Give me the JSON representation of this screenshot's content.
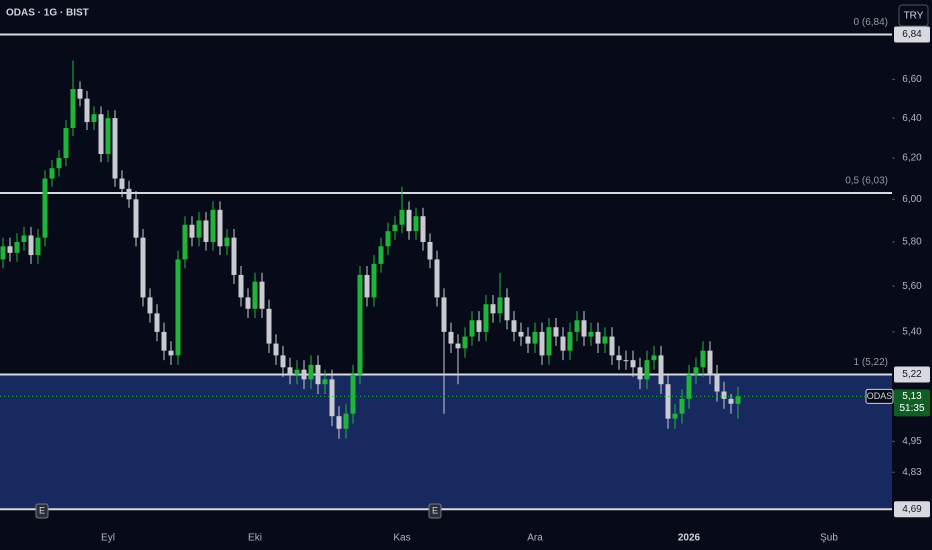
{
  "header": {
    "symbol_title": "ODAS · 1G · BIST",
    "currency": "TRY"
  },
  "chart_data": {
    "type": "candlestick",
    "categories": [
      null,
      null,
      null,
      null,
      null,
      null,
      null,
      null,
      null,
      null,
      null,
      null,
      null,
      null,
      null,
      "Eyl",
      null,
      null,
      null,
      null,
      null,
      null,
      null,
      null,
      null,
      null,
      null,
      null,
      null,
      null,
      null,
      null,
      null,
      null,
      null,
      null,
      "Eki",
      null,
      null,
      null,
      null,
      null,
      null,
      null,
      null,
      null,
      null,
      null,
      null,
      null,
      null,
      null,
      null,
      null,
      null,
      null,
      null,
      "Kas",
      null,
      null,
      null,
      null,
      null,
      null,
      null,
      null,
      null,
      null,
      null,
      null,
      null,
      null,
      null,
      null,
      null,
      null,
      "Ara",
      null,
      null,
      null,
      null,
      null,
      null,
      null,
      null,
      null,
      null,
      null,
      null,
      null,
      null,
      null,
      null,
      null,
      null,
      null,
      null,
      null,
      "2026",
      null,
      null,
      null,
      null,
      null,
      null,
      null,
      null,
      null,
      null,
      null,
      null,
      null,
      null,
      null,
      null,
      null,
      null,
      null,
      "Şub"
    ],
    "open": [
      5.72,
      5.78,
      5.75,
      5.8,
      5.83,
      5.74,
      5.82,
      6.1,
      6.15,
      6.2,
      6.35,
      6.55,
      6.5,
      6.38,
      6.42,
      6.22,
      6.4,
      6.1,
      6.05,
      6.0,
      5.82,
      5.55,
      5.48,
      5.4,
      5.32,
      5.3,
      5.72,
      5.88,
      5.82,
      5.9,
      5.8,
      5.95,
      5.78,
      5.82,
      5.65,
      5.55,
      5.5,
      5.62,
      5.5,
      5.35,
      5.3,
      5.25,
      5.22,
      5.24,
      5.2,
      5.26,
      5.18,
      5.2,
      5.05,
      5.0,
      5.06,
      5.22,
      5.65,
      5.55,
      5.7,
      5.78,
      5.85,
      5.88,
      5.95,
      5.85,
      5.92,
      5.8,
      5.72,
      5.55,
      5.4,
      5.35,
      5.33,
      5.38,
      5.45,
      5.4,
      5.52,
      5.48,
      5.55,
      5.45,
      5.4,
      5.38,
      5.35,
      5.4,
      5.3,
      5.42,
      5.38,
      5.32,
      5.4,
      5.45,
      5.38,
      5.4,
      5.35,
      5.38,
      5.3,
      5.28,
      5.28,
      5.25,
      5.2,
      5.28,
      5.3,
      5.18,
      5.04,
      5.06,
      5.12,
      5.22,
      5.25,
      5.32,
      5.22,
      5.15,
      5.12,
      5.1,
      null,
      null,
      null,
      null,
      null,
      null,
      null,
      null,
      null,
      null,
      null,
      null,
      null
    ],
    "high": [
      5.82,
      5.82,
      5.84,
      5.87,
      5.87,
      5.86,
      6.14,
      6.19,
      6.24,
      6.39,
      6.7,
      6.59,
      6.54,
      6.46,
      6.46,
      6.44,
      6.44,
      6.14,
      6.09,
      6.04,
      5.86,
      5.59,
      5.52,
      5.44,
      5.36,
      5.76,
      5.92,
      5.92,
      5.94,
      5.94,
      5.99,
      5.99,
      5.86,
      5.86,
      5.69,
      5.59,
      5.66,
      5.66,
      5.54,
      5.39,
      5.34,
      5.29,
      5.28,
      5.28,
      5.3,
      5.3,
      5.24,
      5.24,
      5.09,
      5.1,
      5.26,
      5.69,
      5.69,
      5.74,
      5.82,
      5.89,
      5.92,
      6.06,
      5.99,
      5.96,
      5.96,
      5.84,
      5.76,
      5.59,
      5.44,
      5.39,
      5.42,
      5.49,
      5.49,
      5.56,
      5.56,
      5.66,
      5.59,
      5.49,
      5.44,
      5.42,
      5.44,
      5.44,
      5.46,
      5.46,
      5.42,
      5.44,
      5.49,
      5.49,
      5.44,
      5.44,
      5.42,
      5.42,
      5.34,
      5.32,
      5.32,
      5.29,
      5.32,
      5.34,
      5.34,
      5.22,
      5.1,
      5.16,
      5.26,
      5.29,
      5.36,
      5.36,
      5.26,
      5.19,
      5.14,
      5.17,
      null,
      null,
      null,
      null,
      null,
      null,
      null,
      null,
      null,
      null,
      null,
      null,
      null
    ],
    "low": [
      5.68,
      5.71,
      5.71,
      5.76,
      5.7,
      5.7,
      5.78,
      6.06,
      6.11,
      6.16,
      6.31,
      6.46,
      6.34,
      6.34,
      6.18,
      6.18,
      6.06,
      6.01,
      5.96,
      5.78,
      5.51,
      5.44,
      5.36,
      5.28,
      5.26,
      5.26,
      5.68,
      5.78,
      5.78,
      5.76,
      5.76,
      5.74,
      5.74,
      5.61,
      5.51,
      5.46,
      5.46,
      5.46,
      5.31,
      5.26,
      5.21,
      5.18,
      5.18,
      5.16,
      5.16,
      5.14,
      5.14,
      5.01,
      4.96,
      4.96,
      5.02,
      5.18,
      5.51,
      5.51,
      5.66,
      5.74,
      5.81,
      5.84,
      5.81,
      5.81,
      5.76,
      5.68,
      5.51,
      5.06,
      5.31,
      5.18,
      5.29,
      5.34,
      5.36,
      5.36,
      5.44,
      5.44,
      5.41,
      5.36,
      5.34,
      5.31,
      5.31,
      5.26,
      5.26,
      5.34,
      5.28,
      5.28,
      5.36,
      5.34,
      5.34,
      5.31,
      5.31,
      5.26,
      5.24,
      5.24,
      5.21,
      5.16,
      5.16,
      5.24,
      5.14,
      5.0,
      5.0,
      5.02,
      5.08,
      5.18,
      5.21,
      5.18,
      5.11,
      5.08,
      5.06,
      5.04,
      null,
      null,
      null,
      null,
      null,
      null,
      null,
      null,
      null,
      null,
      null,
      null,
      null
    ],
    "close": [
      5.78,
      5.75,
      5.8,
      5.83,
      5.74,
      5.82,
      6.1,
      6.15,
      6.2,
      6.35,
      6.55,
      6.5,
      6.38,
      6.42,
      6.22,
      6.4,
      6.1,
      6.05,
      6.0,
      5.82,
      5.55,
      5.48,
      5.4,
      5.32,
      5.3,
      5.72,
      5.88,
      5.82,
      5.9,
      5.8,
      5.95,
      5.78,
      5.82,
      5.65,
      5.55,
      5.5,
      5.62,
      5.5,
      5.35,
      5.3,
      5.25,
      5.22,
      5.24,
      5.2,
      5.26,
      5.18,
      5.2,
      5.05,
      5.0,
      5.06,
      5.22,
      5.65,
      5.55,
      5.7,
      5.78,
      5.85,
      5.88,
      5.95,
      5.85,
      5.92,
      5.8,
      5.72,
      5.55,
      5.4,
      5.35,
      5.33,
      5.38,
      5.45,
      5.4,
      5.52,
      5.48,
      5.55,
      5.45,
      5.4,
      5.38,
      5.35,
      5.4,
      5.3,
      5.42,
      5.38,
      5.32,
      5.4,
      5.45,
      5.38,
      5.4,
      5.35,
      5.38,
      5.3,
      5.28,
      5.28,
      5.25,
      5.2,
      5.28,
      5.3,
      5.18,
      5.04,
      5.06,
      5.12,
      5.22,
      5.25,
      5.32,
      5.22,
      5.15,
      5.12,
      5.1,
      5.13,
      null,
      null,
      null,
      null,
      null,
      null,
      null,
      null,
      null,
      null,
      null,
      null,
      null
    ],
    "up_color": "#1fb53a",
    "down_color": "#c9cbd1",
    "ylim": [
      4.65,
      7.03
    ],
    "log_scale": true,
    "yticks": [
      {
        "value": 6.6,
        "label": "6,60"
      },
      {
        "value": 6.4,
        "label": "6,40"
      },
      {
        "value": 6.2,
        "label": "6,20"
      },
      {
        "value": 6.0,
        "label": "6,00"
      },
      {
        "value": 5.8,
        "label": "5,80"
      },
      {
        "value": 5.6,
        "label": "5,60"
      },
      {
        "value": 5.4,
        "label": "5,40"
      },
      {
        "value": 4.95,
        "label": "4,95"
      },
      {
        "value": 4.83,
        "label": "4,83"
      }
    ],
    "fib_levels": [
      {
        "label": "0 (6,84)",
        "value": 6.84,
        "price_label": "6,84"
      },
      {
        "label": "0,5 (6,03)",
        "value": 6.03
      },
      {
        "label": "1 (5,22)",
        "value": 5.22,
        "price_label": "5,22"
      }
    ],
    "zone_bottom": {
      "value": 4.69,
      "label": "4,69"
    },
    "zone_color": "#17295f",
    "last_price": {
      "symbol": "ODAS",
      "value": 5.13,
      "label": "5,13",
      "countdown": "51:35"
    },
    "earnings_markers": [
      "E",
      "E"
    ]
  }
}
